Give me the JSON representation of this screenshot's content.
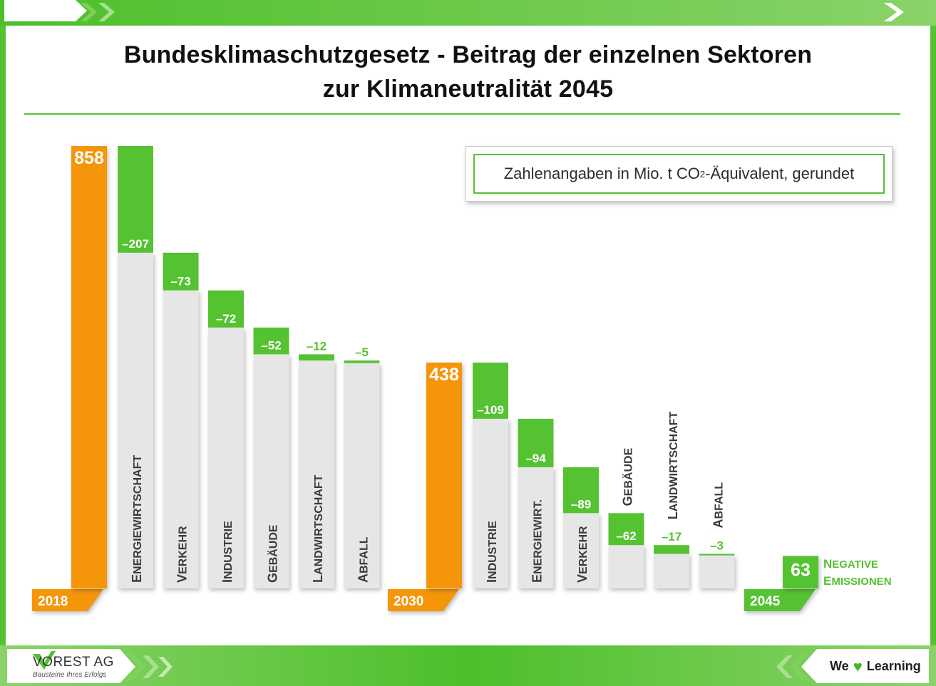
{
  "header": {
    "title_line1": "Bundesklimaschutzgesetz - Beitrag der einzelnen Sektoren",
    "title_line2": "zur Klimaneutralität 2045"
  },
  "note": {
    "prefix": "Zahlenangaben in Mio. t CO",
    "subscript": "2",
    "suffix": "-Äquivalent, gerundet"
  },
  "footer": {
    "logo_name": "VOREST AG",
    "logo_tagline": "Bausteine Ihres Erfolgs",
    "slogan_left": "We",
    "slogan_right": "Learning"
  },
  "colors": {
    "total": "#f5960a",
    "reduction": "#55c232",
    "remaining": "#e6e6e6",
    "frame": "#55c232"
  },
  "chart_data": {
    "type": "bar",
    "subtype": "waterfall",
    "unit": "Mio. t CO2-Äquivalent",
    "ylim": [
      0,
      858
    ],
    "stages": [
      {
        "year": "2018",
        "total": 858,
        "total_label": "858",
        "reductions": [
          {
            "sector": "Energiewirtschaft",
            "value": -207,
            "label": "–207"
          },
          {
            "sector": "Verkehr",
            "value": -73,
            "label": "–73"
          },
          {
            "sector": "Industrie",
            "value": -72,
            "label": "–72"
          },
          {
            "sector": "Gebäude",
            "value": -52,
            "label": "–52"
          },
          {
            "sector": "Landwirtschaft",
            "value": -12,
            "label": "–12"
          },
          {
            "sector": "Abfall",
            "value": -5,
            "label": "–5"
          }
        ]
      },
      {
        "year": "2030",
        "total": 438,
        "total_label": "438",
        "reductions": [
          {
            "sector": "Industrie",
            "value": -109,
            "label": "–109"
          },
          {
            "sector": "Energiewirt.",
            "value": -94,
            "label": "–94"
          },
          {
            "sector": "Verkehr",
            "value": -89,
            "label": "–89"
          },
          {
            "sector": "Gebäude",
            "value": -62,
            "label": "–62"
          },
          {
            "sector": "Landwirtschaft",
            "value": -17,
            "label": "–17"
          },
          {
            "sector": "Abfall",
            "value": -3,
            "label": "–3"
          }
        ]
      }
    ],
    "final": {
      "year": "2045",
      "value": 63,
      "label": "63",
      "annotation_line1": "Negative",
      "annotation_line2": "Emissionen"
    }
  }
}
